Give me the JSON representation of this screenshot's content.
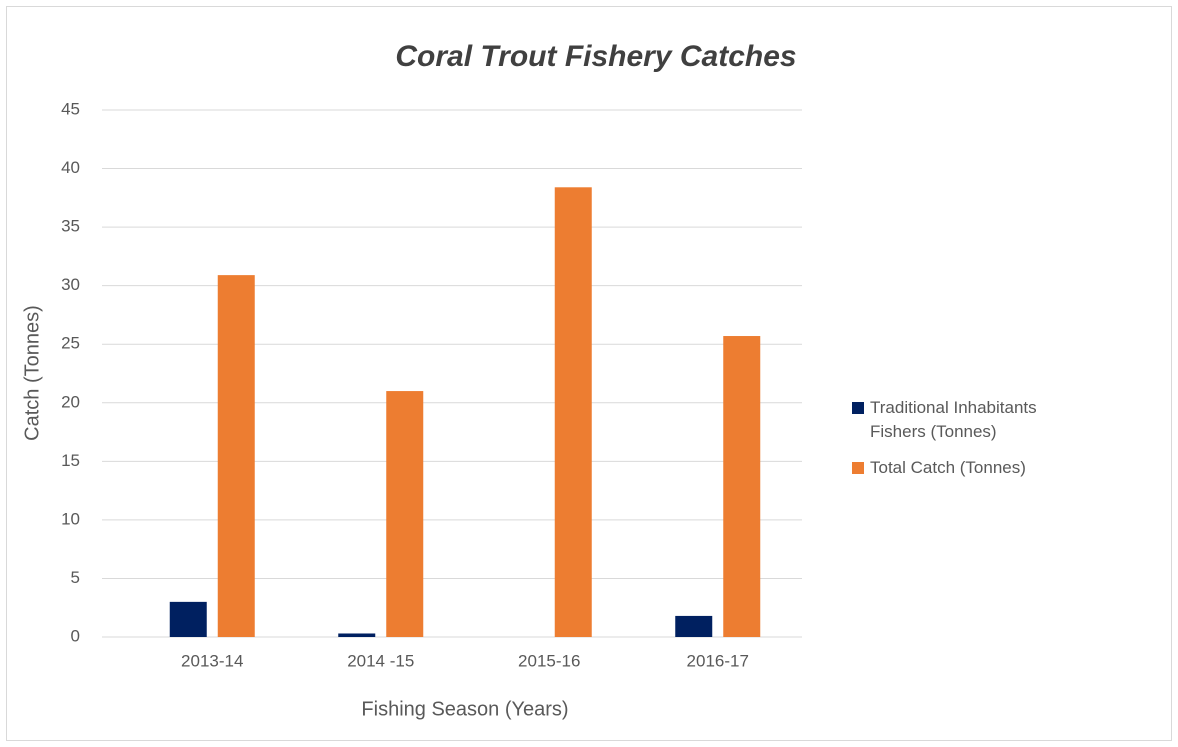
{
  "chart_data": {
    "type": "bar",
    "title": "Coral Trout Fishery Catches",
    "x_label": "Fishing Season (Years)",
    "y_label": "Catch (Tonnes)",
    "categories": [
      "2013-14",
      "2014 -15",
      "2015-16",
      "2016-17"
    ],
    "series": [
      {
        "name": "Traditional Inhabitants Fishers (Tonnes)",
        "color": "#002060",
        "values": [
          3.0,
          0.3,
          0,
          1.8
        ]
      },
      {
        "name": "Total Catch (Tonnes)",
        "color": "#ed7d31",
        "values": [
          30.9,
          21.0,
          38.4,
          25.7
        ]
      }
    ],
    "ylim": [
      0,
      45
    ],
    "yticks": [
      0,
      5,
      10,
      15,
      20,
      25,
      30,
      35,
      40,
      45
    ],
    "grid": true,
    "legend": "right"
  }
}
